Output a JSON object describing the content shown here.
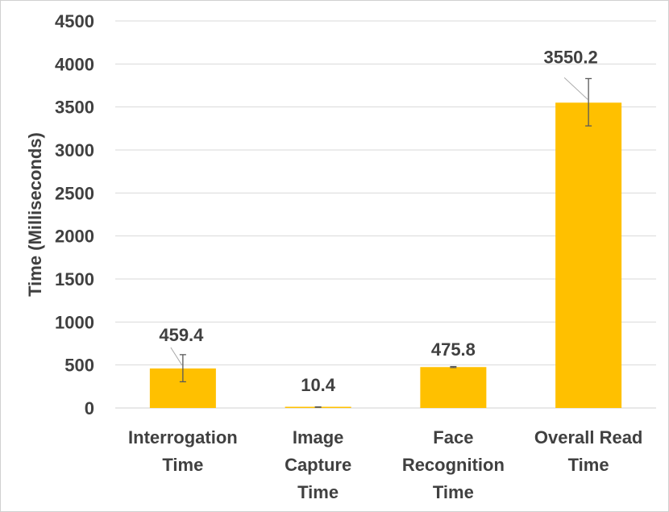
{
  "chart_data": {
    "type": "bar",
    "title": "",
    "xlabel": "",
    "ylabel": "Time (Milliseconds)",
    "ylim": [
      0,
      4500
    ],
    "yticks": [
      0,
      500,
      1000,
      1500,
      2000,
      2500,
      3000,
      3500,
      4000,
      4500
    ],
    "categories": [
      [
        "Interrogation",
        "Time"
      ],
      [
        "Image",
        "Capture",
        "Time"
      ],
      [
        "Face",
        "Recognition",
        "Time"
      ],
      [
        "Overall Read",
        "Time"
      ]
    ],
    "values": [
      459.4,
      10.4,
      475.8,
      3550.2
    ],
    "data_labels": [
      "459.4",
      "10.4",
      "475.8",
      "3550.2"
    ],
    "error_bars": [
      [
        305,
        620
      ],
      [
        8,
        13
      ],
      [
        470,
        482
      ],
      [
        3280,
        3830
      ]
    ],
    "bar_color": "#FFC000",
    "grid": true,
    "legend": "none"
  }
}
